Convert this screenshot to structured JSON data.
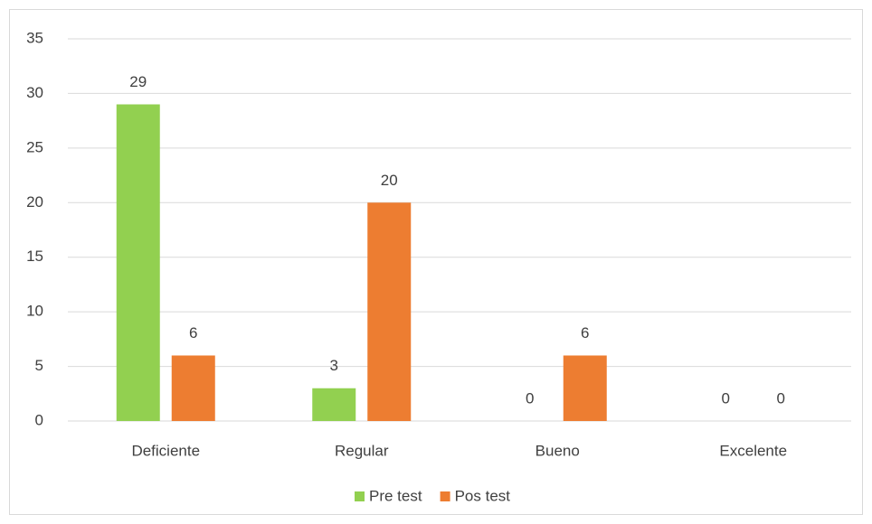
{
  "chart_data": {
    "type": "bar",
    "categories": [
      "Deficiente",
      "Regular",
      "Bueno",
      "Excelente"
    ],
    "series": [
      {
        "name": "Pre test",
        "color": "#92d050",
        "values": [
          29,
          3,
          0,
          0
        ]
      },
      {
        "name": "Pos test",
        "color": "#ed7d31",
        "values": [
          6,
          20,
          6,
          0
        ]
      }
    ],
    "ylim": [
      0,
      35
    ],
    "yticks": [
      0,
      5,
      10,
      15,
      20,
      25,
      30,
      35
    ],
    "grid": true,
    "legend": "bottom"
  }
}
